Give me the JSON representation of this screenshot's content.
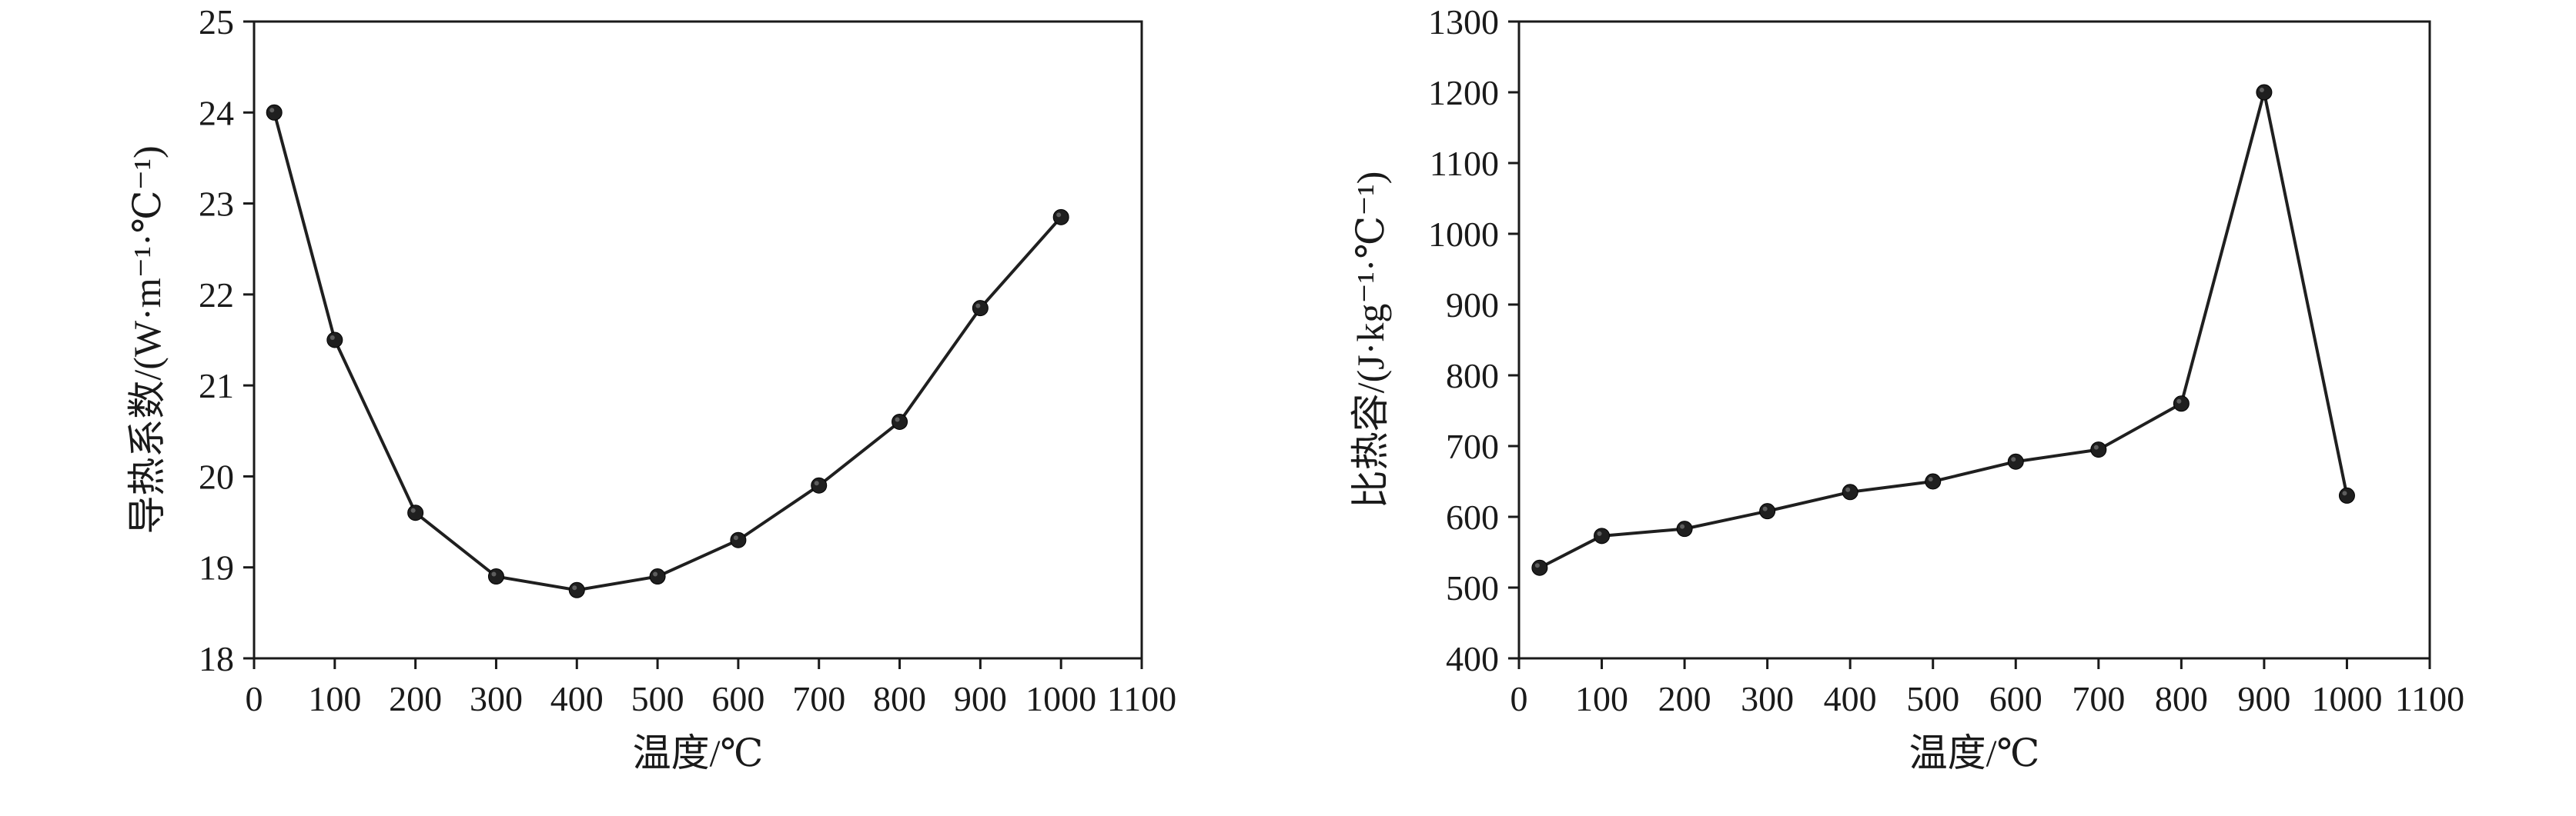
{
  "page": {
    "background": "#ffffff",
    "line_color": "#1f1f1f",
    "marker_color": "#1f1f1f",
    "frame_color": "#1a1a1a"
  },
  "chart_data": [
    {
      "type": "line",
      "name": "thermal-conductivity-vs-temperature",
      "title": "",
      "xlabel": "温度/℃",
      "ylabel": "导热系数/(W·m⁻¹·℃⁻¹)",
      "x": [
        25,
        100,
        200,
        300,
        400,
        500,
        600,
        700,
        800,
        900,
        1000
      ],
      "values": [
        24.0,
        21.5,
        19.6,
        18.9,
        18.75,
        18.9,
        19.3,
        19.9,
        20.6,
        21.85,
        22.85
      ],
      "xlim": [
        0,
        1100
      ],
      "ylim": [
        18,
        25
      ],
      "xticks": [
        0,
        100,
        200,
        300,
        400,
        500,
        600,
        700,
        800,
        900,
        1000,
        1100
      ],
      "yticks": [
        18,
        19,
        20,
        21,
        22,
        23,
        24,
        25
      ],
      "grid": false,
      "legend": "none",
      "marker": "circle"
    },
    {
      "type": "line",
      "name": "specific-heat-vs-temperature",
      "title": "",
      "xlabel": "温度/℃",
      "ylabel": "比热容/(J·kg⁻¹·℃⁻¹)",
      "x": [
        25,
        100,
        200,
        300,
        400,
        500,
        600,
        700,
        800,
        900,
        1000
      ],
      "values": [
        528,
        573,
        583,
        608,
        635,
        650,
        678,
        695,
        760,
        1200,
        630
      ],
      "xlim": [
        0,
        1100
      ],
      "ylim": [
        400,
        1300
      ],
      "xticks": [
        0,
        100,
        200,
        300,
        400,
        500,
        600,
        700,
        800,
        900,
        1000,
        1100
      ],
      "yticks": [
        400,
        500,
        600,
        700,
        800,
        900,
        1000,
        1100,
        1200,
        1300
      ],
      "grid": false,
      "legend": "none",
      "marker": "circle"
    }
  ]
}
